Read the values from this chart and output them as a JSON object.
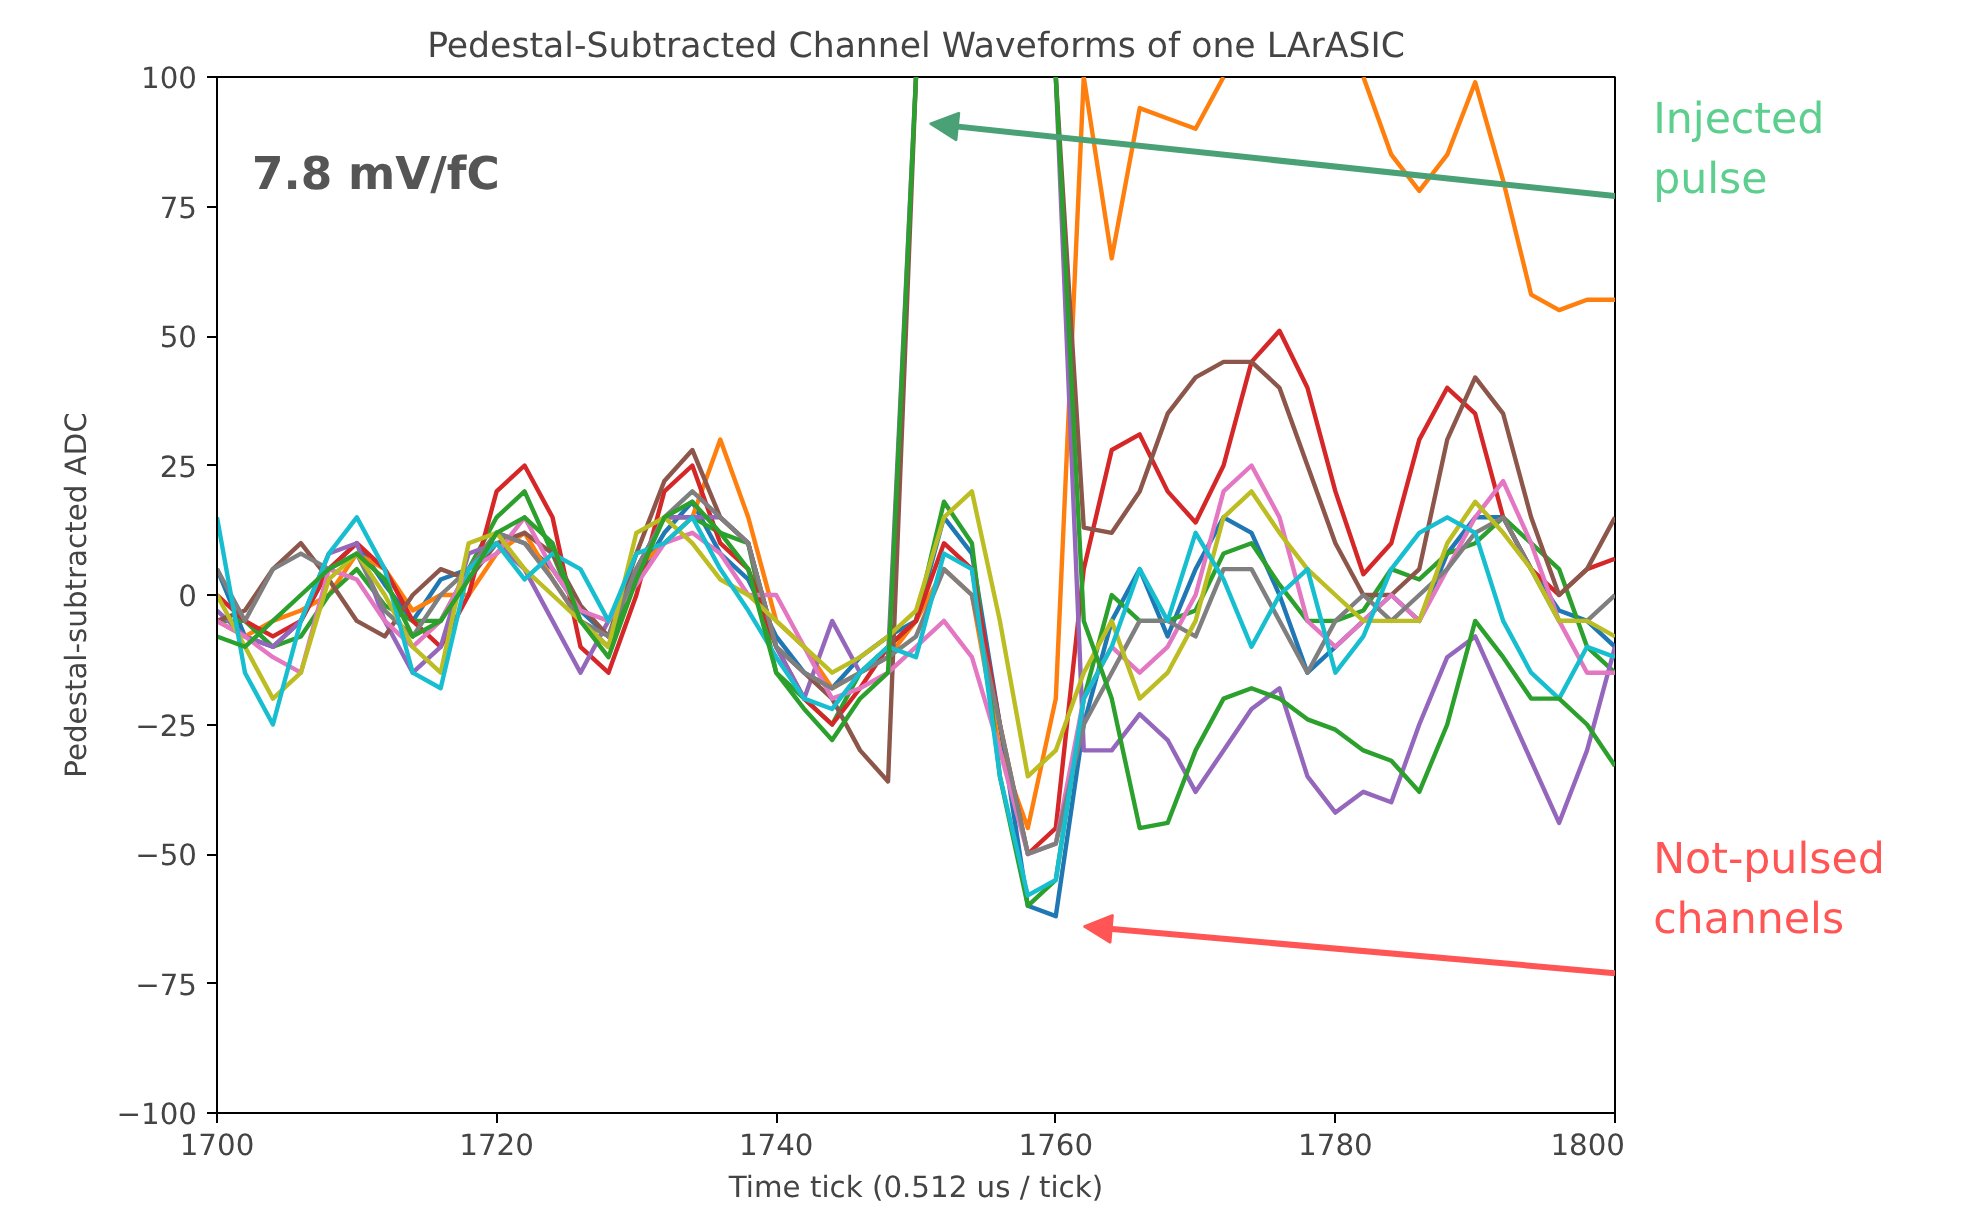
{
  "chart_data": {
    "type": "line",
    "title": "Pedestal-Subtracted Channel Waveforms of one LArASIC",
    "xlabel": "Time tick (0.512 us / tick)",
    "ylabel": "Pedestal-subtracted ADC",
    "x": [
      1700,
      1702,
      1704,
      1706,
      1708,
      1710,
      1712,
      1714,
      1716,
      1718,
      1720,
      1722,
      1724,
      1726,
      1728,
      1730,
      1732,
      1734,
      1736,
      1738,
      1740,
      1742,
      1744,
      1746,
      1748,
      1750,
      1752,
      1754,
      1756,
      1758,
      1760,
      1762,
      1764,
      1766,
      1768,
      1770,
      1772,
      1774,
      1776,
      1778,
      1780,
      1782,
      1784,
      1786,
      1788,
      1790,
      1792,
      1794,
      1796,
      1798,
      1800
    ],
    "series": [
      {
        "color": "#1f77b4",
        "values": [
          5,
          -8,
          -10,
          -5,
          5,
          10,
          2,
          -5,
          3,
          5,
          12,
          10,
          5,
          -3,
          -8,
          3,
          12,
          18,
          8,
          3,
          -8,
          -15,
          -18,
          -12,
          -8,
          -5,
          15,
          8,
          -25,
          -60,
          -62,
          -25,
          -5,
          5,
          -8,
          5,
          15,
          12,
          0,
          -15,
          -10,
          -5,
          0,
          -5,
          8,
          15,
          15,
          5,
          -3,
          -5,
          -10
        ]
      },
      {
        "color": "#ff7f0e",
        "values": [
          -5,
          -8,
          -5,
          -3,
          0,
          8,
          5,
          -3,
          0,
          0,
          8,
          12,
          3,
          -5,
          -10,
          5,
          10,
          15,
          30,
          15,
          -5,
          -10,
          -18,
          -15,
          -12,
          -5,
          5,
          0,
          -30,
          -45,
          -20,
          100,
          65,
          94,
          92,
          90,
          100,
          null,
          null,
          null,
          null,
          100,
          85,
          78,
          85,
          99,
          80,
          58,
          55,
          57,
          57
        ]
      },
      {
        "color": "#2ca02c",
        "values": [
          -5,
          -5,
          -10,
          -8,
          0,
          5,
          -2,
          -5,
          -5,
          5,
          15,
          20,
          8,
          -5,
          -10,
          5,
          15,
          15,
          12,
          10,
          -15,
          -20,
          -25,
          -15,
          -10,
          -5,
          18,
          10,
          -35,
          -60,
          -55,
          -20,
          0,
          -5,
          -5,
          -3,
          8,
          10,
          2,
          -5,
          -5,
          -3,
          5,
          3,
          8,
          10,
          15,
          10,
          5,
          -10,
          -15
        ]
      },
      {
        "color": "#d62728",
        "values": [
          0,
          -5,
          -8,
          -5,
          5,
          10,
          5,
          -5,
          -10,
          0,
          20,
          25,
          15,
          -10,
          -15,
          0,
          20,
          25,
          10,
          5,
          -10,
          -20,
          -25,
          -18,
          -10,
          -5,
          10,
          5,
          -25,
          -50,
          -45,
          5,
          28,
          31,
          20,
          14,
          25,
          45,
          51,
          40,
          20,
          4,
          10,
          30,
          40,
          35,
          15,
          5,
          0,
          5,
          7
        ]
      },
      {
        "color": "#9467bd",
        "values": [
          -3,
          -8,
          -10,
          -5,
          8,
          10,
          -5,
          -15,
          -10,
          8,
          10,
          5,
          -5,
          -15,
          -5,
          5,
          15,
          15,
          15,
          10,
          -10,
          -20,
          -5,
          -15,
          -12,
          100,
          null,
          null,
          null,
          null,
          100,
          -30,
          -30,
          -23,
          -28,
          -38,
          -30,
          -22,
          -18,
          -35,
          -42,
          -38,
          -40,
          -25,
          -12,
          -8,
          -20,
          -32,
          -44,
          -30,
          -10
        ]
      },
      {
        "color": "#8c564b",
        "values": [
          -5,
          -3,
          5,
          10,
          3,
          -5,
          -8,
          0,
          5,
          3,
          10,
          12,
          8,
          -2,
          -8,
          8,
          22,
          28,
          15,
          10,
          -10,
          -15,
          -20,
          -30,
          -36,
          100,
          null,
          null,
          null,
          null,
          100,
          13,
          12,
          20,
          35,
          42,
          45,
          45,
          40,
          25,
          10,
          0,
          0,
          5,
          30,
          42,
          35,
          15,
          0,
          5,
          15
        ]
      },
      {
        "color": "#e377c2",
        "values": [
          -5,
          -8,
          -12,
          -15,
          5,
          3,
          -5,
          -10,
          -5,
          5,
          8,
          15,
          5,
          -3,
          -5,
          2,
          10,
          12,
          8,
          0,
          0,
          -10,
          -20,
          -18,
          -15,
          -10,
          -5,
          -12,
          -30,
          -50,
          -48,
          -20,
          -10,
          -15,
          -10,
          0,
          20,
          25,
          15,
          -5,
          -10,
          -5,
          0,
          -5,
          5,
          15,
          22,
          10,
          -5,
          -15,
          -15
        ]
      },
      {
        "color": "#7f7f7f",
        "values": [
          5,
          -5,
          5,
          8,
          5,
          8,
          -3,
          -8,
          0,
          5,
          12,
          10,
          3,
          -5,
          -8,
          5,
          15,
          20,
          15,
          10,
          -10,
          -15,
          -18,
          -15,
          -12,
          -8,
          5,
          0,
          -25,
          -50,
          -48,
          -25,
          -15,
          -5,
          -5,
          -8,
          5,
          5,
          -5,
          -15,
          -5,
          0,
          -5,
          0,
          5,
          12,
          15,
          5,
          -5,
          -5,
          0
        ]
      },
      {
        "color": "#bcbd22",
        "values": [
          0,
          -10,
          -20,
          -15,
          3,
          8,
          0,
          -10,
          -15,
          10,
          12,
          5,
          0,
          -5,
          -10,
          12,
          15,
          10,
          3,
          0,
          -5,
          -10,
          -15,
          -12,
          -8,
          -3,
          15,
          20,
          -5,
          -35,
          -30,
          -15,
          -5,
          -20,
          -15,
          -5,
          15,
          20,
          12,
          5,
          0,
          -5,
          -5,
          -5,
          10,
          18,
          12,
          5,
          -5,
          -5,
          -8
        ]
      },
      {
        "color": "#17becf",
        "values": [
          15,
          -15,
          -25,
          -5,
          8,
          15,
          5,
          -15,
          -18,
          5,
          10,
          3,
          8,
          5,
          -5,
          8,
          10,
          15,
          5,
          -3,
          -12,
          -20,
          -22,
          -15,
          -10,
          -12,
          8,
          5,
          -35,
          -58,
          -55,
          -20,
          -10,
          5,
          -5,
          12,
          3,
          -10,
          0,
          5,
          -15,
          -8,
          5,
          12,
          15,
          12,
          -5,
          -15,
          -20,
          -10,
          -12
        ]
      },
      {
        "color": "#2ca02c",
        "values": [
          -8,
          -10,
          -5,
          0,
          5,
          8,
          3,
          -8,
          -5,
          3,
          12,
          15,
          10,
          -5,
          -12,
          3,
          15,
          18,
          12,
          5,
          -15,
          -22,
          -28,
          -20,
          -15,
          100,
          null,
          null,
          null,
          null,
          100,
          -5,
          -20,
          -45,
          -44,
          -30,
          -20,
          -18,
          -20,
          -24,
          -26,
          -30,
          -32,
          -38,
          -25,
          -5,
          -12,
          -20,
          -20,
          -25,
          -33
        ]
      }
    ],
    "xlim": [
      1700,
      1800
    ],
    "xticks": [
      1700,
      1720,
      1740,
      1760,
      1780,
      1800
    ],
    "ylim": [
      -100,
      100
    ],
    "yticks": [
      {
        "value": -100,
        "label": "−100"
      },
      {
        "value": -75,
        "label": "−75"
      },
      {
        "value": -50,
        "label": "−50"
      },
      {
        "value": -25,
        "label": "−25"
      },
      0,
      25,
      50,
      75,
      100
    ],
    "annotations": [
      "7.8 mV/fC",
      "Injected pulse",
      "Not-pulsed channels"
    ],
    "grid": false,
    "line_style": "solid",
    "marker": "none"
  }
}
